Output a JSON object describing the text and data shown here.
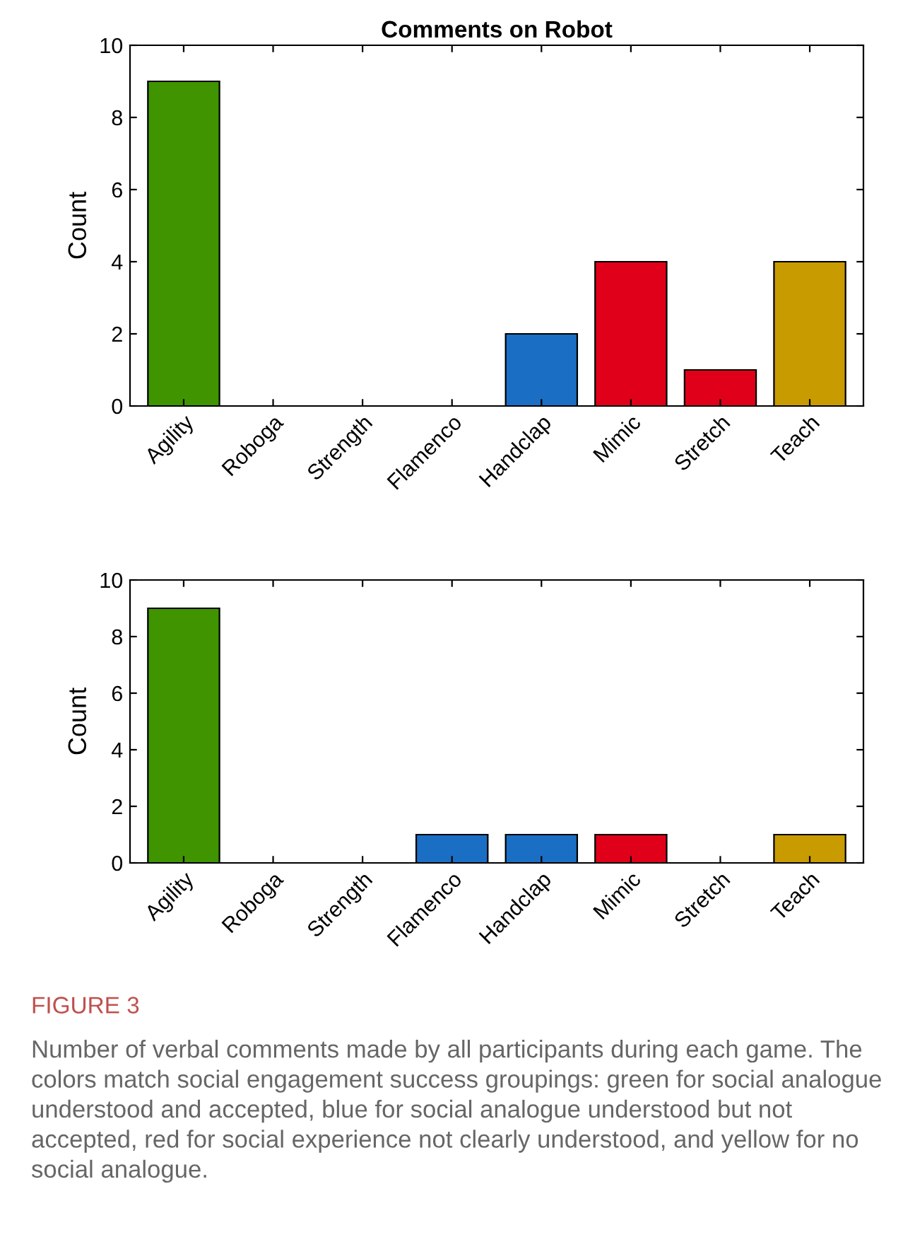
{
  "chart_data": [
    {
      "type": "bar",
      "title": "Comments on Robot",
      "ylabel": "Count",
      "categories": [
        "Agility",
        "Roboga",
        "Strength",
        "Flamenco",
        "Handclap",
        "Mimic",
        "Stretch",
        "Teach"
      ],
      "values": [
        9,
        0,
        0,
        0,
        2,
        4,
        1,
        4
      ],
      "colors": [
        "#3f9400",
        "#000000",
        "#000000",
        "#000000",
        "#1a6fc4",
        "#e0001a",
        "#e0001a",
        "#c89b00"
      ],
      "ylim": [
        0,
        10
      ],
      "yticks": [
        0,
        2,
        4,
        6,
        8,
        10
      ],
      "grid": false
    },
    {
      "type": "bar",
      "ylabel": "Count",
      "categories": [
        "Agility",
        "Roboga",
        "Strength",
        "Flamenco",
        "Handclap",
        "Mimic",
        "Stretch",
        "Teach"
      ],
      "values": [
        9,
        0,
        0,
        1,
        1,
        1,
        0,
        1
      ],
      "colors": [
        "#3f9400",
        "#000000",
        "#000000",
        "#1a6fc4",
        "#1a6fc4",
        "#e0001a",
        "#000000",
        "#c89b00"
      ],
      "ylim": [
        0,
        10
      ],
      "yticks": [
        0,
        2,
        4,
        6,
        8,
        10
      ],
      "grid": false,
      "annotations": [
        "FIGURE 3",
        "Number of verbal comments made by all participants during each game. The colors match social engagement success groupings: green for social analogue understood and accepted, blue for social analogue understood but not accepted, red for social experience not clearly understood, and yellow for no social analogue."
      ]
    }
  ]
}
